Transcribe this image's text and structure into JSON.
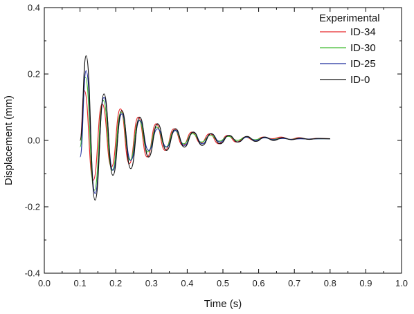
{
  "chart_data": {
    "type": "line",
    "title": "",
    "xlabel": "Time (s)",
    "ylabel": "Displacement (mm)",
    "xlim": [
      0.0,
      1.0
    ],
    "ylim": [
      -0.4,
      0.4
    ],
    "x_ticks": [
      0.0,
      0.1,
      0.2,
      0.3,
      0.4,
      0.5,
      0.6,
      0.7,
      0.8,
      0.9,
      1.0
    ],
    "x_tick_labels": [
      "0.0",
      "0.1",
      "0.2",
      "0.3",
      "0.4",
      "0.5",
      "0.6",
      "0.7",
      "0.8",
      "0.9",
      "1.0"
    ],
    "y_ticks": [
      -0.4,
      -0.2,
      0.0,
      0.2,
      0.4
    ],
    "y_tick_labels": [
      "-0.4",
      "-0.2",
      "0.0",
      "0.2",
      "0.4"
    ],
    "grid": false,
    "legend": {
      "placement": "top-right",
      "title": "Experimental"
    },
    "series": [
      {
        "name": "ID-34",
        "color": "#e8282a",
        "x": [
          0.1,
          0.112,
          0.137,
          0.162,
          0.188,
          0.213,
          0.238,
          0.263,
          0.288,
          0.313,
          0.338,
          0.363,
          0.388,
          0.413,
          0.438,
          0.463,
          0.488,
          0.513,
          0.538,
          0.563,
          0.588,
          0.613,
          0.638,
          0.663,
          0.688,
          0.713,
          0.738,
          0.763,
          0.8
        ],
        "y": [
          0.0,
          0.15,
          -0.12,
          0.11,
          -0.08,
          0.095,
          -0.07,
          0.07,
          -0.05,
          0.05,
          -0.03,
          0.035,
          -0.015,
          0.025,
          -0.008,
          0.02,
          -0.01,
          0.015,
          -0.005,
          0.01,
          0.0,
          0.01,
          0.005,
          0.01,
          0.003,
          0.008,
          0.004,
          0.006,
          0.005
        ]
      },
      {
        "name": "ID-30",
        "color": "#3fba2e",
        "x": [
          0.1,
          0.115,
          0.14,
          0.165,
          0.19,
          0.215,
          0.24,
          0.265,
          0.29,
          0.315,
          0.34,
          0.365,
          0.39,
          0.415,
          0.44,
          0.465,
          0.49,
          0.515,
          0.54,
          0.565,
          0.59,
          0.615,
          0.64,
          0.665,
          0.69,
          0.715,
          0.74,
          0.765,
          0.8
        ],
        "y": [
          -0.02,
          0.19,
          -0.15,
          0.12,
          -0.09,
          0.085,
          -0.06,
          0.06,
          -0.035,
          0.04,
          -0.02,
          0.03,
          -0.01,
          0.02,
          -0.005,
          0.015,
          -0.002,
          0.012,
          0.0,
          0.01,
          0.002,
          0.008,
          0.003,
          0.007,
          0.003,
          0.006,
          0.004,
          0.005,
          0.005
        ]
      },
      {
        "name": "ID-25",
        "color": "#1f2f9e",
        "x": [
          0.1,
          0.117,
          0.142,
          0.167,
          0.192,
          0.217,
          0.242,
          0.267,
          0.292,
          0.317,
          0.342,
          0.367,
          0.392,
          0.417,
          0.442,
          0.467,
          0.492,
          0.517,
          0.542,
          0.567,
          0.592,
          0.617,
          0.642,
          0.667,
          0.692,
          0.717,
          0.742,
          0.767,
          0.8
        ],
        "y": [
          -0.05,
          0.21,
          -0.16,
          0.13,
          -0.09,
          0.08,
          -0.06,
          0.06,
          -0.03,
          0.035,
          -0.02,
          0.03,
          -0.015,
          0.025,
          -0.01,
          0.02,
          -0.005,
          0.015,
          -0.005,
          0.01,
          0.0,
          0.008,
          0.002,
          0.006,
          0.003,
          0.005,
          0.004,
          0.005,
          0.005
        ]
      },
      {
        "name": "ID-0",
        "color": "#111111",
        "x": [
          0.1,
          0.117,
          0.142,
          0.167,
          0.192,
          0.217,
          0.242,
          0.267,
          0.292,
          0.317,
          0.342,
          0.367,
          0.392,
          0.417,
          0.442,
          0.467,
          0.492,
          0.517,
          0.542,
          0.567,
          0.592,
          0.617,
          0.642,
          0.667,
          0.692,
          0.717,
          0.742,
          0.767,
          0.8
        ],
        "y": [
          0.0,
          0.255,
          -0.18,
          0.14,
          -0.105,
          0.09,
          -0.085,
          0.07,
          -0.05,
          0.05,
          -0.03,
          0.035,
          -0.02,
          0.025,
          -0.015,
          0.02,
          -0.01,
          0.015,
          -0.005,
          0.012,
          -0.003,
          0.01,
          0.0,
          0.008,
          0.002,
          0.007,
          0.003,
          0.006,
          0.005
        ]
      }
    ]
  }
}
